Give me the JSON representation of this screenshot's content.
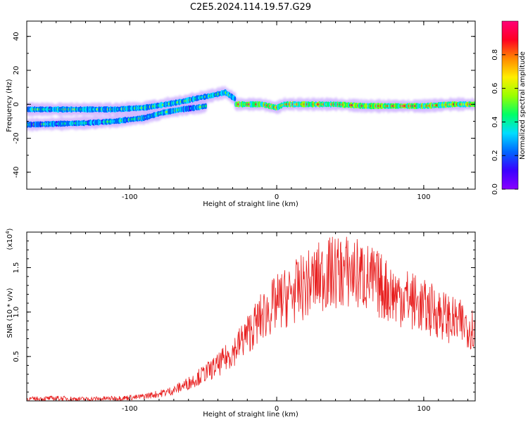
{
  "title": "C2E5.2024.114.19.57.G29",
  "colors": {
    "snr_line": "#e82020",
    "frame": "#000000",
    "colorbar_stops": [
      "#8a00ff",
      "#3a00ff",
      "#0066ff",
      "#00ddff",
      "#00ff66",
      "#99ff00",
      "#ffee00",
      "#ff8800",
      "#ff0022",
      "#ff0077"
    ]
  },
  "chart_data": [
    {
      "type": "heatmap",
      "name": "spectrogram",
      "xlabel": "Height of straight line (km)",
      "ylabel": "Frequency (Hz)",
      "xlim": [
        -170,
        135
      ],
      "ylim": [
        -50,
        49
      ],
      "xticks": [
        -100,
        0,
        100
      ],
      "xtick_labels": [
        "-100",
        "0",
        "100"
      ],
      "yticks": [
        -40,
        -20,
        0,
        20,
        40
      ],
      "ytick_labels": [
        "-40",
        "-20",
        "0",
        "20",
        "40"
      ],
      "colorbar": {
        "label": "Normalized spectral amplitude",
        "range": [
          0,
          1
        ],
        "ticks": [
          0.0,
          0.2,
          0.4,
          0.6,
          0.8
        ],
        "tick_labels": [
          "0.0",
          "0.2",
          "0.4",
          "0.6",
          "0.8"
        ]
      },
      "ridges": [
        {
          "x": [
            -170,
            -150,
            -130,
            -110,
            -90,
            -75,
            -62,
            -52,
            -45,
            -35,
            -28
          ],
          "y": [
            -3,
            -3,
            -3,
            -3,
            -2,
            0,
            2,
            4,
            5,
            7,
            3
          ],
          "amp": 0.5
        },
        {
          "x": [
            -170,
            -150,
            -130,
            -110,
            -90,
            -78,
            -65,
            -55,
            -48
          ],
          "y": [
            -12,
            -11.5,
            -11,
            -10,
            -8,
            -5,
            -3,
            -2,
            -1
          ],
          "amp": 0.45
        },
        {
          "x": [
            -28,
            -10,
            0,
            5,
            20,
            40,
            60,
            80,
            100,
            120,
            135
          ],
          "y": [
            0,
            0,
            -2,
            0,
            0,
            0,
            -1,
            -1,
            -1,
            0,
            0
          ],
          "amp": 0.85
        }
      ]
    },
    {
      "type": "line",
      "name": "snr",
      "xlabel": "Height of straight line (km)",
      "ylabel": "SNR (10 * v/v)",
      "y_multiplier": "(x10",
      "y_multiplier_exp": "4",
      "y_multiplier_close": ")",
      "xlim": [
        -170,
        135
      ],
      "ylim": [
        0,
        1.9
      ],
      "xticks": [
        -100,
        0,
        100
      ],
      "xtick_labels": [
        "-100",
        "0",
        "100"
      ],
      "yticks": [
        0.5,
        1.0,
        1.5
      ],
      "ytick_labels": [
        "0.5",
        "1.0",
        "1.5"
      ],
      "envelope": {
        "x": [
          -170,
          -150,
          -130,
          -110,
          -95,
          -80,
          -70,
          -60,
          -50,
          -40,
          -30,
          -20,
          -10,
          0,
          10,
          20,
          30,
          40,
          50,
          60,
          70,
          80,
          90,
          100,
          110,
          120,
          130,
          135
        ],
        "y": [
          0.02,
          0.03,
          0.02,
          0.03,
          0.04,
          0.08,
          0.12,
          0.2,
          0.3,
          0.4,
          0.55,
          0.75,
          0.95,
          1.1,
          1.2,
          1.3,
          1.4,
          1.45,
          1.45,
          1.4,
          1.3,
          1.2,
          1.15,
          1.05,
          1.0,
          0.9,
          0.85,
          0.8
        ]
      }
    }
  ]
}
